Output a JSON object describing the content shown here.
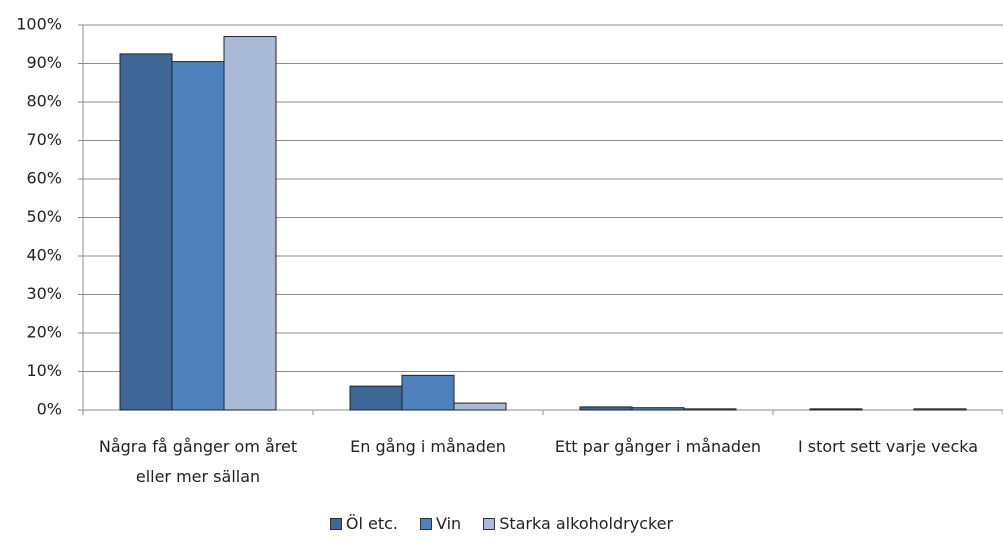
{
  "chart_data": {
    "type": "bar",
    "categories": [
      "Några få gånger om året eller mer sällan",
      "En gång i månaden",
      "Ett par gånger i månaden",
      "I stort sett varje vecka"
    ],
    "series": [
      {
        "name": "Öl etc.",
        "color": "#3e6696",
        "values": [
          92.5,
          6.2,
          0.8,
          0.3
        ]
      },
      {
        "name": "Vin",
        "color": "#4f81bd",
        "values": [
          90.5,
          9,
          0.6,
          0
        ]
      },
      {
        "name": "Starka alkoholdrycker",
        "color": "#a9b9d8",
        "values": [
          97,
          1.8,
          0.3,
          0.3
        ]
      }
    ],
    "ylim": [
      0,
      100
    ],
    "yticks": [
      {
        "value": 0,
        "label": "0%"
      },
      {
        "value": 10,
        "label": "10%"
      },
      {
        "value": 20,
        "label": "20%"
      },
      {
        "value": 30,
        "label": "30%"
      },
      {
        "value": 40,
        "label": "40%"
      },
      {
        "value": 50,
        "label": "50%"
      },
      {
        "value": 60,
        "label": "60%"
      },
      {
        "value": 70,
        "label": "70%"
      },
      {
        "value": 80,
        "label": "80%"
      },
      {
        "value": 90,
        "label": "90%"
      },
      {
        "value": 100,
        "label": "100%"
      }
    ],
    "grid": true,
    "legend": "bottom"
  }
}
